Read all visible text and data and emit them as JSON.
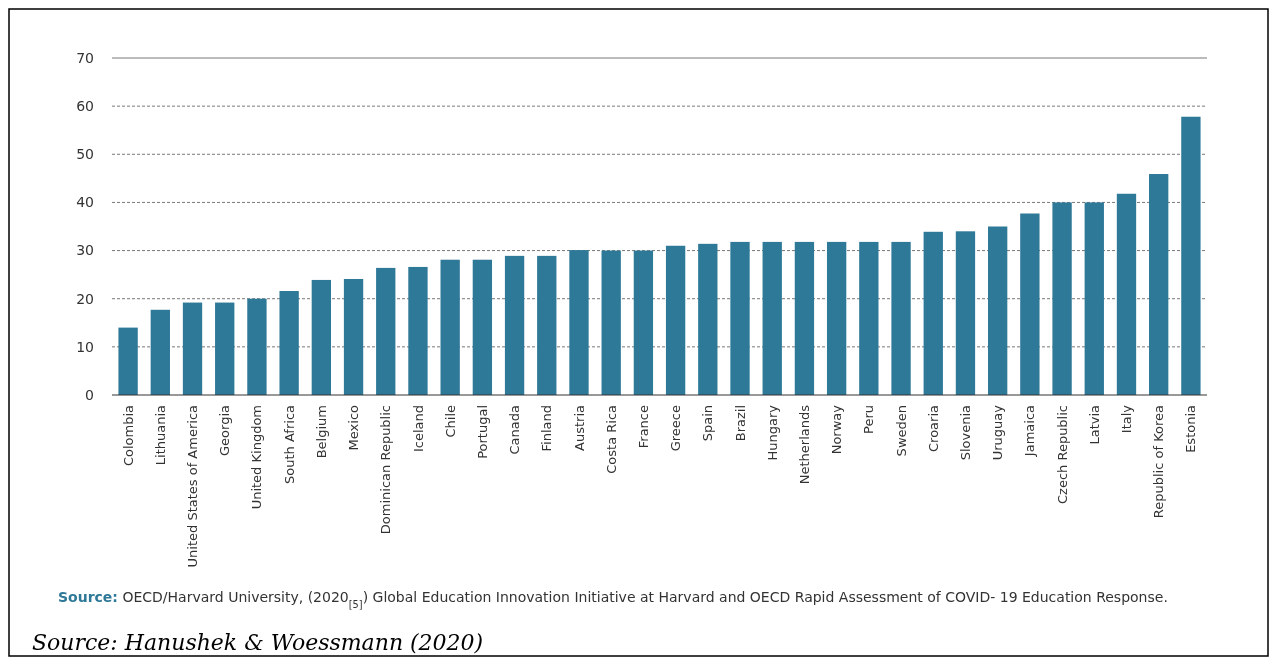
{
  "chart_data": {
    "type": "bar",
    "categories": [
      "Colombia",
      "Lithuania",
      "United States of America",
      "Georgia",
      "United Kingdom",
      "South Africa",
      "Belgium",
      "Mexico",
      "Dominican Republic",
      "Iceland",
      "Chile",
      "Portugal",
      "Canada",
      "Finland",
      "Austria",
      "Costa Rica",
      "France",
      "Greece",
      "Spain",
      "Brazil",
      "Hungary",
      "Netherlands",
      "Norway",
      "Peru",
      "Sweden",
      "Croaria",
      "Slovenia",
      "Uruguay",
      "Jamaica",
      "Czech Republic",
      "Latvia",
      "Italy",
      "Republic of Korea",
      "Estonia"
    ],
    "values": [
      14,
      17.7,
      19.2,
      19.2,
      20,
      21.6,
      23.9,
      24.1,
      26.4,
      26.6,
      28.1,
      28.1,
      28.9,
      28.9,
      30.1,
      30,
      30,
      31,
      31.4,
      31.8,
      31.8,
      31.8,
      31.8,
      31.8,
      31.8,
      33.9,
      34,
      35,
      37.7,
      40,
      40,
      41.8,
      45.9,
      57.8
    ],
    "color": "#2e7898",
    "ylim": [
      0,
      70
    ],
    "yticks": [
      0,
      10,
      20,
      30,
      40,
      50,
      60,
      70
    ],
    "grid": "y",
    "annotations": [
      "Source: OECD/Harvard University, (2020$_{[5]}$) Global Education Innovation Initiative at Harvard and OECD Rapid Assessment of COVID- 19 Education Response.",
      "Source: Hanushek & Woessmann (2020)"
    ]
  }
}
